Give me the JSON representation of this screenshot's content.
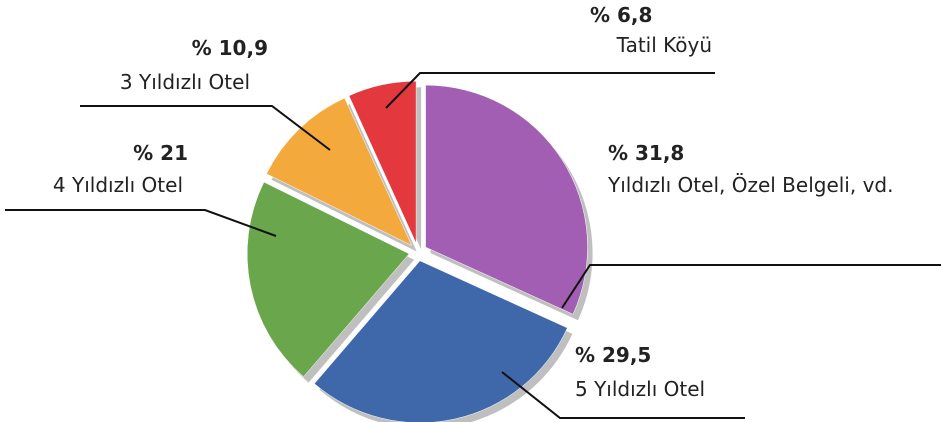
{
  "chart_data": {
    "type": "pie",
    "categories": [
      "Yıldızlı Otel, Özel Belgeli, vd.",
      "5 Yıldızlı Otel",
      "4 Yıldızlı Otel",
      "3 Yıldızlı Otel",
      "Tatil Köyü"
    ],
    "values": [
      31.8,
      29.5,
      21,
      10.9,
      6.8
    ],
    "value_labels": [
      "% 31,8",
      "% 29,5",
      "% 21",
      "% 10,9",
      "% 6,8"
    ],
    "colors": [
      "#a15eb2",
      "#3f68ab",
      "#6aa64c",
      "#f3a93c",
      "#e2383e"
    ]
  }
}
